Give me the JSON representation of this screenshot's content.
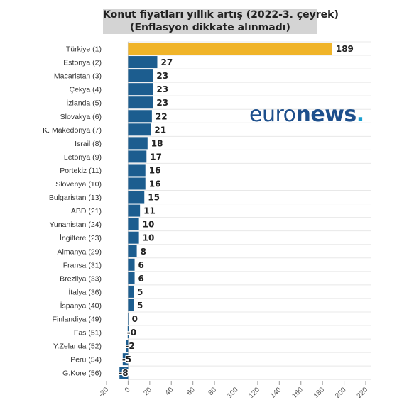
{
  "title_line1": "Konut fiyatları yıllık artış (2022-3. çeyrek)",
  "title_line2": "(Enflasyon dikkate alınmadı)",
  "logo": {
    "part1": "euro",
    "part2": "news",
    "dot": "."
  },
  "colors": {
    "highlight": "#f0b429",
    "bar": "#1c5d8f",
    "grid": "#e8e8e8",
    "title_bg": "#d4d4d4"
  },
  "chart_data": {
    "type": "bar",
    "orientation": "horizontal",
    "title": "Konut fiyatları yıllık artış (2022-3. çeyrek) (Enflasyon dikkate alınmadı)",
    "categories": [
      "Türkiye (1)",
      "Estonya (2)",
      "Macaristan (3)",
      "Çekya (4)",
      "İzlanda (5)",
      "Slovakya (6)",
      "K. Makedonya (7)",
      "İsrail (8)",
      "Letonya (9)",
      "Portekiz (11)",
      "Slovenya (10)",
      "Bulgaristan (13)",
      "ABD (21)",
      "Yunanistan (24)",
      "İngiltere (23)",
      "Almanya (29)",
      "Fransa (31)",
      "Brezilya (33)",
      "İtalya (36)",
      "İspanya (40)",
      "Finlandiya (49)",
      "Fas (51)",
      "Y.Zelanda (52)",
      "Peru (54)",
      "G.Kore (56)"
    ],
    "values": [
      189,
      27,
      23,
      23,
      23,
      22,
      21,
      18,
      17,
      16,
      16,
      15,
      11,
      10,
      10,
      8,
      6,
      6,
      5,
      5,
      0.1,
      -0.4,
      -2,
      -5,
      -8
    ],
    "value_labels": [
      "189",
      "27",
      "23",
      "23",
      "23",
      "22",
      "21",
      "18",
      "17",
      "16",
      "16",
      "15",
      "11",
      "10",
      "10",
      "8",
      "6",
      "6",
      "5",
      "5",
      "0",
      "-0",
      "-2",
      "-5",
      "-8"
    ],
    "highlight_index": 0,
    "xlim": [
      -20,
      220
    ],
    "xticks": [
      -20,
      0,
      20,
      40,
      60,
      80,
      100,
      120,
      140,
      160,
      180,
      200,
      220
    ],
    "xlabel": "",
    "ylabel": "",
    "grid": true,
    "legend": "none"
  }
}
